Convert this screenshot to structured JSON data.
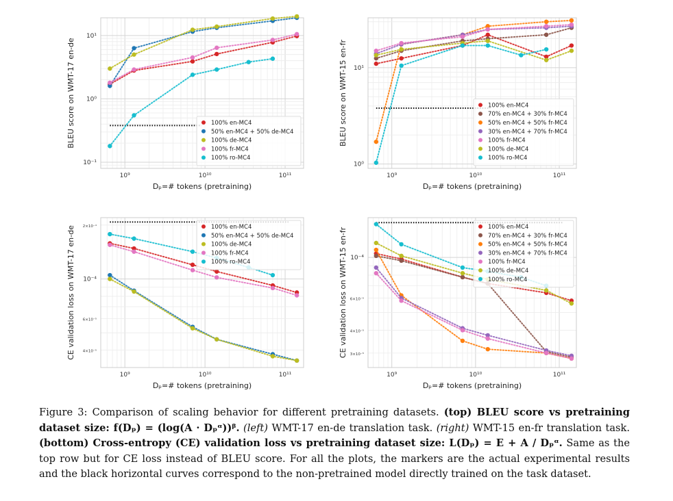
{
  "chart_data": [
    {
      "type": "scatter",
      "id": "tl",
      "xlabel": "Dₚ=# tokens (pretraining)",
      "ylabel": "BLEU score on WMT-17 en-de",
      "xscale": "log",
      "yscale": "log",
      "xlim": [
        500000000.0,
        170000000000.0
      ],
      "ylim": [
        0.08,
        19
      ],
      "xticks": [
        {
          "v": 1000000000.0,
          "t": "10⁹"
        },
        {
          "v": 10000000000.0,
          "t": "10¹⁰"
        },
        {
          "v": 100000000000.0,
          "t": "10¹¹"
        }
      ],
      "yticks": [
        {
          "v": 0.1,
          "t": "10⁻¹"
        },
        {
          "v": 1,
          "t": "10⁰"
        },
        {
          "v": 10,
          "t": "10¹"
        }
      ],
      "baseline": {
        "y": 0.38,
        "x0": 650000000.0,
        "x1": 9000000000.0
      },
      "legend_pos": "lower-right",
      "series": [
        {
          "name": "100% en-MC4",
          "color": "#d62728",
          "x": [
            650000000.0,
            1300000000.0,
            7000000000.0,
            14000000000.0,
            70000000000.0,
            140000000000.0
          ],
          "y": [
            1.7,
            2.8,
            3.9,
            5.1,
            7.8,
            9.8
          ]
        },
        {
          "name": "50% en-MC4 + 50% de-MC4",
          "color": "#1f77b4",
          "x": [
            650000000.0,
            1300000000.0,
            7000000000.0,
            14000000000.0,
            70000000000.0,
            140000000000.0
          ],
          "y": [
            1.6,
            6.3,
            11.5,
            13.2,
            17,
            19
          ]
        },
        {
          "name": "100% de-MC4",
          "color": "#bcbd22",
          "x": [
            650000000.0,
            1300000000.0,
            7000000000.0,
            14000000000.0,
            70000000000.0,
            140000000000.0
          ],
          "y": [
            3.0,
            5.0,
            12.3,
            13.8,
            18.5,
            20
          ]
        },
        {
          "name": "100% fr-MC4",
          "color": "#e377c2",
          "x": [
            650000000.0,
            1300000000.0,
            7000000000.0,
            14000000000.0,
            70000000000.0,
            140000000000.0
          ],
          "y": [
            1.8,
            2.9,
            4.5,
            6.4,
            8.5,
            10.5
          ]
        },
        {
          "name": "100% ro-MC4",
          "color": "#17becf",
          "x": [
            650000000.0,
            1300000000.0,
            7000000000.0,
            14000000000.0,
            35000000000.0,
            70000000000.0
          ],
          "y": [
            0.18,
            0.55,
            2.4,
            2.9,
            3.8,
            4.3
          ]
        }
      ]
    },
    {
      "type": "scatter",
      "id": "tr",
      "xlabel": "Dₚ=# tokens (pretraining)",
      "ylabel": "BLEU score on WMT-15 en-fr",
      "xscale": "log",
      "yscale": "log",
      "xlim": [
        520000000.0,
        160000000000.0
      ],
      "ylim": [
        0.9,
        33
      ],
      "xticks": [
        {
          "v": 1000000000.0,
          "t": "10⁹"
        },
        {
          "v": 10000000000.0,
          "t": "10¹⁰"
        },
        {
          "v": 100000000000.0,
          "t": "10¹¹"
        }
      ],
      "yticks": [
        {
          "v": 1,
          "t": "10⁰"
        },
        {
          "v": 10,
          "t": "10¹"
        }
      ],
      "baseline": {
        "y": 3.8,
        "x0": 650000000.0,
        "x1": 15000000000.0
      },
      "legend_pos": "lower-right",
      "series": [
        {
          "name": "100% en-MC4",
          "color": "#d62728",
          "x": [
            650000000.0,
            1300000000.0,
            7000000000.0,
            14000000000.0,
            70000000000.0,
            140000000000.0
          ],
          "y": [
            11,
            12.5,
            17,
            22,
            13,
            17
          ]
        },
        {
          "name": "70% en-MC4 + 30% fr-MC4",
          "color": "#8c564b",
          "x": [
            650000000.0,
            1300000000.0,
            7000000000.0,
            14000000000.0,
            70000000000.0,
            140000000000.0
          ],
          "y": [
            12.5,
            15,
            19,
            20,
            22,
            26
          ]
        },
        {
          "name": "50% en-MC4 + 50% fr-MC4",
          "color": "#ff7f0e",
          "x": [
            650000000.0,
            1300000000.0,
            7000000000.0,
            14000000000.0,
            70000000000.0,
            140000000000.0
          ],
          "y": [
            1.7,
            17.5,
            22,
            27,
            30,
            31
          ]
        },
        {
          "name": "30% en-MC4 + 70% fr-MC4",
          "color": "#9467bd",
          "x": [
            650000000.0,
            1300000000.0,
            7000000000.0,
            14000000000.0,
            70000000000.0,
            140000000000.0
          ],
          "y": [
            14,
            17.5,
            22,
            25,
            26,
            27
          ]
        },
        {
          "name": "100% fr-MC4",
          "color": "#e377c2",
          "x": [
            650000000.0,
            1300000000.0,
            7000000000.0,
            14000000000.0,
            70000000000.0,
            140000000000.0
          ],
          "y": [
            15,
            18,
            21,
            25,
            27,
            28
          ]
        },
        {
          "name": "100% de-MC4",
          "color": "#bcbd22",
          "x": [
            650000000.0,
            1300000000.0,
            7000000000.0,
            14000000000.0,
            70000000000.0,
            140000000000.0
          ],
          "y": [
            13.5,
            15.5,
            18,
            19,
            12,
            15
          ]
        },
        {
          "name": "100% ro-MC4",
          "color": "#17becf",
          "x": [
            650000000.0,
            1300000000.0,
            7000000000.0,
            14000000000.0,
            35000000000.0,
            70000000000.0
          ],
          "y": [
            1.03,
            10.5,
            17,
            17,
            13.5,
            15.5
          ]
        }
      ]
    },
    {
      "type": "scatter",
      "id": "bl",
      "xlabel": "Dₚ=# tokens (pretraining)",
      "ylabel": "CE validation loss on WMT-17 en-de",
      "xscale": "log",
      "yscale": "log",
      "xlim": [
        500000000.0,
        170000000000.0
      ],
      "ylim": [
        3.2e-05,
        0.00022
      ],
      "xticks": [
        {
          "v": 1000000000.0,
          "t": "10⁹"
        },
        {
          "v": 10000000000.0,
          "t": "10¹⁰"
        },
        {
          "v": 100000000000.0,
          "t": "10¹¹"
        }
      ],
      "yticks": [
        {
          "v": 4e-05,
          "t": "4×10⁻⁵",
          "small": true
        },
        {
          "v": 6e-05,
          "t": "6×10⁻⁵",
          "small": true
        },
        {
          "v": 0.0001,
          "t": "10⁻⁴"
        },
        {
          "v": 0.0002,
          "t": "2×10⁻⁴",
          "small": true
        }
      ],
      "baseline": {
        "y": 0.000208,
        "x0": 650000000.0,
        "x1": 110000000000.0
      },
      "legend_pos": "upper-right",
      "series": [
        {
          "name": "100% en-MC4",
          "color": "#d62728",
          "x": [
            650000000.0,
            1300000000.0,
            7000000000.0,
            14000000000.0,
            70000000000.0,
            140000000000.0
          ],
          "y": [
            0.000158,
            0.000148,
            0.00012,
            0.00011,
            9.2e-05,
            8.4e-05
          ]
        },
        {
          "name": "50% en-MC4 + 50% de-MC4",
          "color": "#1f77b4",
          "x": [
            650000000.0,
            1300000000.0,
            7000000000.0,
            14000000000.0,
            70000000000.0,
            140000000000.0
          ],
          "y": [
            0.000105,
            8.6e-05,
            5.4e-05,
            4.6e-05,
            3.8e-05,
            3.5e-05
          ]
        },
        {
          "name": "100% de-MC4",
          "color": "#bcbd22",
          "x": [
            650000000.0,
            1300000000.0,
            7000000000.0,
            14000000000.0,
            70000000000.0,
            140000000000.0
          ],
          "y": [
            0.0001,
            8.5e-05,
            5.3e-05,
            4.6e-05,
            3.7e-05,
            3.5e-05
          ]
        },
        {
          "name": "100% fr-MC4",
          "color": "#e377c2",
          "x": [
            650000000.0,
            1300000000.0,
            7000000000.0,
            14000000000.0,
            70000000000.0,
            140000000000.0
          ],
          "y": [
            0.000155,
            0.000142,
            0.000112,
            0.000102,
            8.9e-05,
            8.1e-05
          ]
        },
        {
          "name": "100% ro-MC4",
          "color": "#17becf",
          "x": [
            650000000.0,
            1300000000.0,
            7000000000.0,
            14000000000.0,
            35000000000.0,
            70000000000.0
          ],
          "y": [
            0.000178,
            0.000168,
            0.000142,
            0.000131,
            0.000116,
            0.000105
          ]
        }
      ]
    },
    {
      "type": "scatter",
      "id": "br",
      "xlabel": "Dₚ=# tokens (pretraining)",
      "ylabel": "CE validation loss on WMT-15 en-fr",
      "xscale": "log",
      "yscale": "log",
      "xlim": [
        520000000.0,
        160000000000.0
      ],
      "ylim": [
        2.5e-05,
        0.000165
      ],
      "xticks": [
        {
          "v": 1000000000.0,
          "t": "10⁹"
        },
        {
          "v": 10000000000.0,
          "t": "10¹⁰"
        },
        {
          "v": 100000000000.0,
          "t": "10¹¹"
        }
      ],
      "yticks": [
        {
          "v": 3e-05,
          "t": "3×10⁻⁵",
          "small": true
        },
        {
          "v": 4e-05,
          "t": "4×10⁻⁵",
          "small": true
        },
        {
          "v": 6e-05,
          "t": "6×10⁻⁵",
          "small": true
        },
        {
          "v": 0.0001,
          "t": "10⁻⁴"
        }
      ],
      "baseline": {
        "y": 0.000155,
        "x0": 650000000.0,
        "x1": 110000000000.0
      },
      "legend_pos": "upper-right",
      "series": [
        {
          "name": "100% en-MC4",
          "color": "#d62728",
          "x": [
            650000000.0,
            1300000000.0,
            7000000000.0,
            14000000000.0,
            70000000000.0,
            140000000000.0
          ],
          "y": [
            0.000105,
            9.8e-05,
            7.8e-05,
            7.2e-05,
            6.4e-05,
            5.8e-05
          ]
        },
        {
          "name": "70% en-MC4 + 30% fr-MC4",
          "color": "#8c564b",
          "x": [
            650000000.0,
            1300000000.0,
            7000000000.0,
            14000000000.0,
            70000000000.0,
            140000000000.0
          ],
          "y": [
            0.000102,
            9.6e-05,
            7.8e-05,
            7.2e-05,
            3.05e-05,
            2.85e-05
          ]
        },
        {
          "name": "50% en-MC4 + 50% fr-MC4",
          "color": "#ff7f0e",
          "x": [
            650000000.0,
            1300000000.0,
            7000000000.0,
            14000000000.0,
            70000000000.0,
            140000000000.0
          ],
          "y": [
            0.00011,
            6.2e-05,
            3.5e-05,
            3.15e-05,
            3e-05,
            2.8e-05
          ]
        },
        {
          "name": "30% en-MC4 + 70% fr-MC4",
          "color": "#9467bd",
          "x": [
            650000000.0,
            1300000000.0,
            7000000000.0,
            14000000000.0,
            70000000000.0,
            140000000000.0
          ],
          "y": [
            8.8e-05,
            6e-05,
            4.1e-05,
            3.75e-05,
            3.1e-05,
            2.9e-05
          ]
        },
        {
          "name": "100% fr-MC4",
          "color": "#e377c2",
          "x": [
            650000000.0,
            1300000000.0,
            7000000000.0,
            14000000000.0,
            70000000000.0,
            140000000000.0
          ],
          "y": [
            8.2e-05,
            5.8e-05,
            4e-05,
            3.6e-05,
            3e-05,
            2.8e-05
          ]
        },
        {
          "name": "100% de-MC4",
          "color": "#bcbd22",
          "x": [
            650000000.0,
            1300000000.0,
            7000000000.0,
            14000000000.0,
            70000000000.0,
            140000000000.0
          ],
          "y": [
            0.00012,
            0.000102,
            8.2e-05,
            7.6e-05,
            6.6e-05,
            5.6e-05
          ]
        },
        {
          "name": "100% ro-MC4",
          "color": "#17becf",
          "x": [
            650000000.0,
            1300000000.0,
            7000000000.0,
            14000000000.0,
            35000000000.0,
            70000000000.0
          ],
          "y": [
            0.000152,
            0.000118,
            8.8e-05,
            8.4e-05,
            7.8e-05,
            7e-05
          ]
        }
      ]
    }
  ],
  "caption": {
    "label": "Figure 3:",
    "text1": " Comparison of scaling behavior for different pretraining datasets. ",
    "bold1": "(top) BLEU score vs pretraining dataset size: f(Dₚ) = (log(A · Dₚᵅ))ᵝ.",
    "ital1": " (left)",
    "text2": " WMT-17 en-de translation task. ",
    "ital2": "(right)",
    "text3": " WMT-15 en-fr translation task. ",
    "bold2": "(bottom) Cross-entropy (CE) validation loss vs pretraining dataset size: L(Dₚ) = E + A / Dₚᵅ.",
    "text4": " Same as the top row but for CE loss instead of BLEU score. For all the plots, the markers are the actual experimental results and the black horizontal curves correspond to the non-pretrained model directly trained on the task dataset."
  }
}
